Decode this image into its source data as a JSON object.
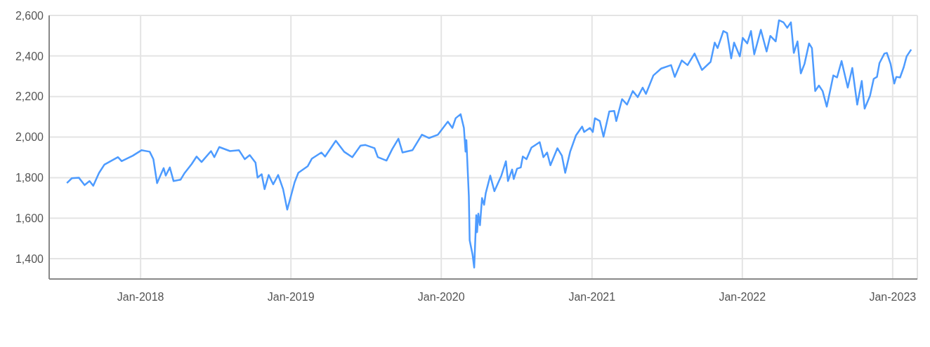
{
  "chart_data": {
    "type": "line",
    "x": [
      "2017-07-06",
      "2017-07-18",
      "2017-08-04",
      "2017-08-18",
      "2017-08-30",
      "2017-09-08",
      "2017-09-22",
      "2017-10-05",
      "2017-11-07",
      "2017-11-16",
      "2017-12-13",
      "2018-01-03",
      "2018-01-23",
      "2018-02-01",
      "2018-02-10",
      "2018-02-26",
      "2018-03-03",
      "2018-03-13",
      "2018-03-22",
      "2018-04-08",
      "2018-04-17",
      "2018-05-05",
      "2018-05-17",
      "2018-05-29",
      "2018-06-21",
      "2018-06-29",
      "2018-07-11",
      "2018-08-06",
      "2018-08-28",
      "2018-09-11",
      "2018-09-23",
      "2018-10-07",
      "2018-10-12",
      "2018-10-22",
      "2018-10-29",
      "2018-11-08",
      "2018-11-19",
      "2018-12-01",
      "2018-12-13",
      "2018-12-23",
      "2019-01-01",
      "2019-01-10",
      "2019-01-19",
      "2019-02-11",
      "2019-02-21",
      "2019-03-16",
      "2019-03-25",
      "2019-04-20",
      "2019-05-10",
      "2019-05-30",
      "2019-06-19",
      "2019-07-01",
      "2019-07-23",
      "2019-07-31",
      "2019-08-21",
      "2019-09-04",
      "2019-09-19",
      "2019-09-29",
      "2019-10-23",
      "2019-11-15",
      "2019-12-02",
      "2019-12-24",
      "2020-01-17",
      "2020-01-28",
      "2020-02-05",
      "2020-02-17",
      "2020-02-25",
      "2020-02-29",
      "2020-03-02",
      "2020-03-08",
      "2020-03-10",
      "2020-03-17",
      "2020-03-21",
      "2020-03-26",
      "2020-03-28",
      "2020-03-31",
      "2020-04-04",
      "2020-04-09",
      "2020-04-14",
      "2020-04-18",
      "2020-04-29",
      "2020-05-09",
      "2020-05-26",
      "2020-06-06",
      "2020-06-11",
      "2020-06-21",
      "2020-06-25",
      "2020-07-03",
      "2020-07-12",
      "2020-07-17",
      "2020-07-26",
      "2020-08-07",
      "2020-08-27",
      "2020-09-05",
      "2020-09-14",
      "2020-09-22",
      "2020-10-09",
      "2020-10-20",
      "2020-10-28",
      "2020-11-09",
      "2020-11-23",
      "2020-12-08",
      "2020-12-13",
      "2020-12-27",
      "2021-01-03",
      "2021-01-08",
      "2021-01-20",
      "2021-01-29",
      "2021-02-12",
      "2021-02-24",
      "2021-03-01",
      "2021-03-15",
      "2021-03-27",
      "2021-04-10",
      "2021-04-22",
      "2021-05-04",
      "2021-05-12",
      "2021-05-30",
      "2021-06-18",
      "2021-07-12",
      "2021-07-21",
      "2021-08-07",
      "2021-08-21",
      "2021-09-07",
      "2021-09-25",
      "2021-10-16",
      "2021-10-26",
      "2021-11-02",
      "2021-11-16",
      "2021-11-25",
      "2021-12-05",
      "2021-12-12",
      "2021-12-26",
      "2022-01-02",
      "2022-01-13",
      "2022-01-22",
      "2022-01-30",
      "2022-02-15",
      "2022-03-01",
      "2022-03-10",
      "2022-03-23",
      "2022-03-31",
      "2022-04-11",
      "2022-04-20",
      "2022-04-29",
      "2022-05-06",
      "2022-05-15",
      "2022-05-23",
      "2022-06-01",
      "2022-06-12",
      "2022-06-19",
      "2022-06-27",
      "2022-07-06",
      "2022-07-15",
      "2022-07-25",
      "2022-08-02",
      "2022-08-10",
      "2022-08-19",
      "2022-08-30",
      "2022-09-14",
      "2022-09-25",
      "2022-10-07",
      "2022-10-18",
      "2022-10-25",
      "2022-11-07",
      "2022-11-16",
      "2022-11-24",
      "2022-11-30",
      "2022-12-12",
      "2022-12-18",
      "2022-12-27",
      "2023-01-05",
      "2023-01-10",
      "2023-01-19",
      "2023-01-28",
      "2023-02-04",
      "2023-02-15"
    ],
    "series": [
      {
        "color": "#4d9bff",
        "values": [
          1773,
          1797,
          1800,
          1763,
          1783,
          1760,
          1823,
          1864,
          1901,
          1881,
          1908,
          1935,
          1928,
          1891,
          1773,
          1847,
          1810,
          1850,
          1783,
          1790,
          1820,
          1867,
          1904,
          1877,
          1931,
          1901,
          1951,
          1931,
          1935,
          1891,
          1911,
          1874,
          1800,
          1817,
          1743,
          1813,
          1767,
          1813,
          1743,
          1642,
          1709,
          1777,
          1824,
          1857,
          1894,
          1924,
          1904,
          1982,
          1928,
          1901,
          1958,
          1961,
          1945,
          1901,
          1884,
          1941,
          1992,
          1924,
          1935,
          2012,
          1995,
          2012,
          2076,
          2045,
          2093,
          2113,
          2045,
          1928,
          1985,
          1709,
          1491,
          1420,
          1356,
          1615,
          1531,
          1622,
          1565,
          1699,
          1666,
          1723,
          1810,
          1733,
          1810,
          1881,
          1783,
          1840,
          1793,
          1844,
          1850,
          1904,
          1891,
          1948,
          1975,
          1901,
          1924,
          1861,
          1945,
          1908,
          1824,
          1928,
          2008,
          2052,
          2025,
          2045,
          2025,
          2093,
          2079,
          2002,
          2126,
          2129,
          2079,
          2187,
          2160,
          2227,
          2197,
          2244,
          2213,
          2304,
          2338,
          2355,
          2297,
          2378,
          2355,
          2412,
          2331,
          2371,
          2466,
          2439,
          2523,
          2513,
          2388,
          2466,
          2398,
          2489,
          2462,
          2523,
          2408,
          2529,
          2422,
          2499,
          2472,
          2576,
          2566,
          2539,
          2566,
          2415,
          2472,
          2314,
          2361,
          2462,
          2439,
          2227,
          2254,
          2227,
          2150,
          2227,
          2304,
          2294,
          2375,
          2244,
          2341,
          2160,
          2277,
          2140,
          2203,
          2287,
          2297,
          2365,
          2412,
          2415,
          2361,
          2264,
          2297,
          2294,
          2345,
          2398,
          2432
        ]
      }
    ],
    "xlim": [
      "2017-05-24",
      "2023-03-02"
    ],
    "xticks": [
      {
        "value": "2018-01-01",
        "label": "Jan-2018"
      },
      {
        "value": "2019-01-01",
        "label": "Jan-2019"
      },
      {
        "value": "2020-01-01",
        "label": "Jan-2020"
      },
      {
        "value": "2021-01-01",
        "label": "Jan-2021"
      },
      {
        "value": "2022-01-01",
        "label": "Jan-2022"
      },
      {
        "value": "2023-01-01",
        "label": "Jan-2023"
      }
    ],
    "ylim": [
      1300,
      2600
    ],
    "yticks": [
      {
        "value": 1400,
        "label": "1,400"
      },
      {
        "value": 1600,
        "label": "1,600"
      },
      {
        "value": 1800,
        "label": "1,800"
      },
      {
        "value": 2000,
        "label": "2,000"
      },
      {
        "value": 2200,
        "label": "2,200"
      },
      {
        "value": 2400,
        "label": "2,400"
      },
      {
        "value": 2600,
        "label": "2,600"
      }
    ],
    "grid": true
  }
}
